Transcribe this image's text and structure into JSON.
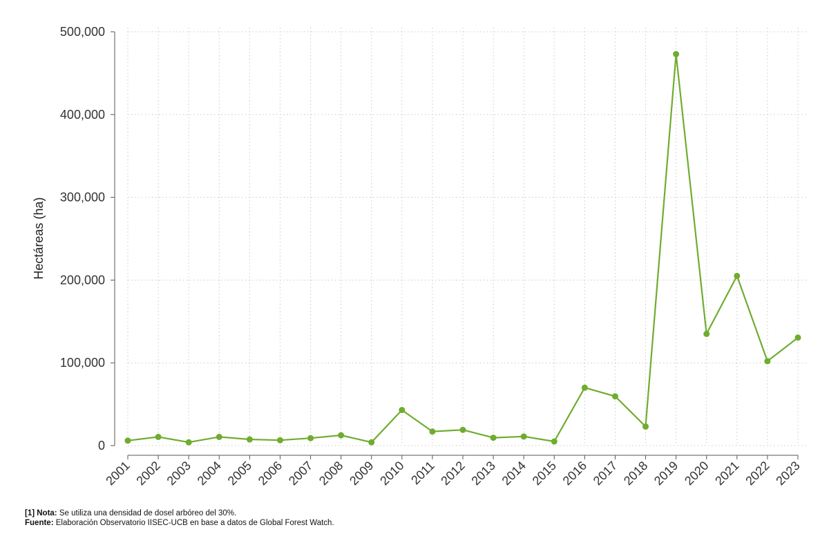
{
  "chart_data": {
    "type": "line",
    "title": "",
    "xlabel": "",
    "ylabel": "Hectáreas (ha)",
    "ylim": [
      0,
      500000
    ],
    "yticks": [
      0,
      100000,
      200000,
      300000,
      400000,
      500000
    ],
    "ytick_labels": [
      "0",
      "100,000",
      "200,000",
      "300,000",
      "400,000",
      "500,000"
    ],
    "grid": true,
    "categories": [
      "2001",
      "2002",
      "2003",
      "2004",
      "2005",
      "2006",
      "2007",
      "2008",
      "2009",
      "2010",
      "2011",
      "2012",
      "2013",
      "2014",
      "2015",
      "2016",
      "2017",
      "2018",
      "2019",
      "2020",
      "2021",
      "2022",
      "2023"
    ],
    "series": [
      {
        "color": "#6fac2f",
        "values": [
          6000,
          10500,
          4000,
          10500,
          7500,
          6500,
          9000,
          12500,
          4000,
          43000,
          17000,
          19000,
          9500,
          11000,
          5000,
          70000,
          59500,
          23000,
          473000,
          135000,
          205000,
          102000,
          130500
        ]
      }
    ]
  },
  "footer": {
    "note_label": "[1] Nota:",
    "note_text": " Se utiliza una densidad de dosel arbóreo del 30%.",
    "source_label": "Fuente:",
    "source_text": " Elaboración Observatorio IISEC-UCB en base a datos de Global Forest Watch."
  }
}
